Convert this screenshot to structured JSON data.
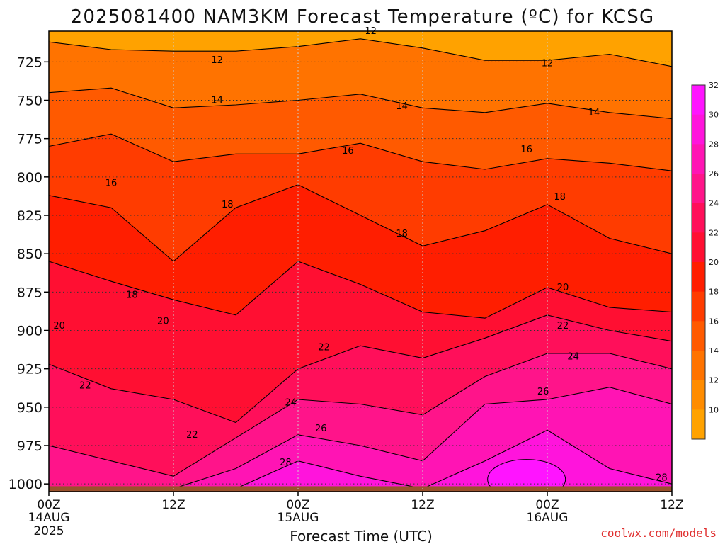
{
  "title": "2025081400 NAM3KM Forecast Temperature (ºC) for KCSG",
  "credit": "coolwx.com/models",
  "xlabel": "Forecast Time (UTC)",
  "colors": {
    "ground": "#9a522c",
    "levels": [
      "#ffa200",
      "#ff8c00",
      "#ff7300",
      "#ff5a00",
      "#ff3c00",
      "#ff1e00",
      "#ff0f32",
      "#ff0f5a",
      "#ff148a",
      "#ff14b4",
      "#ff14dc",
      "#ff14ff"
    ]
  },
  "chart_data": {
    "type": "heatmap",
    "title": "2025081400 NAM3KM Forecast Temperature (ºC) for KCSG",
    "xlabel": "Forecast Time (UTC)",
    "ylabel": "",
    "ylim": [
      1005,
      705
    ],
    "xlim": [
      0,
      48
    ],
    "y_ticks": [
      725,
      750,
      775,
      800,
      825,
      850,
      875,
      900,
      925,
      950,
      975,
      1000
    ],
    "x_ticks": [
      {
        "hour": 0,
        "label": "00Z",
        "sub": "14AUG",
        "sub2": "2025"
      },
      {
        "hour": 12,
        "label": "12Z",
        "sub": "",
        "sub2": ""
      },
      {
        "hour": 24,
        "label": "00Z",
        "sub": "15AUG",
        "sub2": ""
      },
      {
        "hour": 36,
        "label": "12Z",
        "sub": "",
        "sub2": ""
      },
      {
        "hour": 48,
        "label": "00Z",
        "sub": "16AUG",
        "sub2": ""
      },
      {
        "hour": 60,
        "label": "12Z",
        "sub": "",
        "sub2": ""
      }
    ],
    "grid": true,
    "colorbar_ticks": [
      10,
      12,
      14,
      16,
      18,
      20,
      22,
      24,
      26,
      28,
      30,
      32
    ],
    "hours": [
      0,
      6,
      12,
      18,
      24,
      30,
      36,
      42,
      48,
      54,
      60
    ],
    "contours": [
      {
        "temp": 12,
        "pressure": [
          712,
          717,
          718,
          718,
          715,
          710,
          716,
          724,
          724,
          720,
          728
        ]
      },
      {
        "temp": 14,
        "pressure": [
          745,
          742,
          755,
          753,
          750,
          746,
          755,
          758,
          752,
          758,
          762
        ]
      },
      {
        "temp": 16,
        "pressure": [
          780,
          772,
          790,
          785,
          785,
          778,
          790,
          795,
          788,
          791,
          796
        ]
      },
      {
        "temp": 18,
        "pressure": [
          812,
          820,
          855,
          820,
          805,
          825,
          845,
          835,
          818,
          840,
          850
        ]
      },
      {
        "temp": 20,
        "pressure": [
          855,
          868,
          880,
          890,
          855,
          870,
          888,
          892,
          872,
          885,
          888
        ]
      },
      {
        "temp": 22,
        "pressure": [
          922,
          938,
          945,
          960,
          925,
          910,
          918,
          905,
          890,
          900,
          907
        ]
      },
      {
        "temp": 24,
        "pressure": [
          975,
          985,
          995,
          970,
          945,
          948,
          955,
          930,
          915,
          915,
          925
        ]
      },
      {
        "temp": 26,
        "pressure": [
          1003,
          1003,
          1003,
          990,
          968,
          975,
          985,
          948,
          945,
          937,
          948
        ]
      },
      {
        "temp": 28,
        "pressure": [
          1003,
          1003,
          1003,
          1003,
          985,
          995,
          1003,
          985,
          965,
          990,
          1000
        ]
      }
    ],
    "contour_labels": [
      {
        "temp": "12",
        "hour": 31.0,
        "pressure": 705
      },
      {
        "temp": "12",
        "hour": 16.2,
        "pressure": 724
      },
      {
        "temp": "12",
        "hour": 48.0,
        "pressure": 726
      },
      {
        "temp": "14",
        "hour": 16.2,
        "pressure": 750
      },
      {
        "temp": "14",
        "hour": 34.0,
        "pressure": 754
      },
      {
        "temp": "14",
        "hour": 52.5,
        "pressure": 758
      },
      {
        "temp": "16",
        "hour": 6.0,
        "pressure": 804
      },
      {
        "temp": "16",
        "hour": 28.8,
        "pressure": 783
      },
      {
        "temp": "16",
        "hour": 46.0,
        "pressure": 782
      },
      {
        "temp": "18",
        "hour": 17.2,
        "pressure": 818
      },
      {
        "temp": "18",
        "hour": 34.0,
        "pressure": 837
      },
      {
        "temp": "18",
        "hour": 49.2,
        "pressure": 813
      },
      {
        "temp": "18",
        "hour": 8.0,
        "pressure": 877
      },
      {
        "temp": "20",
        "hour": 1.0,
        "pressure": 897
      },
      {
        "temp": "20",
        "hour": 11.0,
        "pressure": 894
      },
      {
        "temp": "20",
        "hour": 49.5,
        "pressure": 872
      },
      {
        "temp": "22",
        "hour": 3.5,
        "pressure": 936
      },
      {
        "temp": "22",
        "hour": 13.8,
        "pressure": 968
      },
      {
        "temp": "22",
        "hour": 26.5,
        "pressure": 911
      },
      {
        "temp": "22",
        "hour": 49.5,
        "pressure": 897
      },
      {
        "temp": "24",
        "hour": 23.3,
        "pressure": 947
      },
      {
        "temp": "24",
        "hour": 50.5,
        "pressure": 917
      },
      {
        "temp": "26",
        "hour": 26.2,
        "pressure": 964
      },
      {
        "temp": "26",
        "hour": 47.6,
        "pressure": 940
      },
      {
        "temp": "28",
        "hour": 22.8,
        "pressure": 986
      },
      {
        "temp": "28",
        "hour": 59.0,
        "pressure": 996
      }
    ],
    "hot_core": {
      "hour": 46.0,
      "pressure": 997,
      "temp": 32
    }
  }
}
